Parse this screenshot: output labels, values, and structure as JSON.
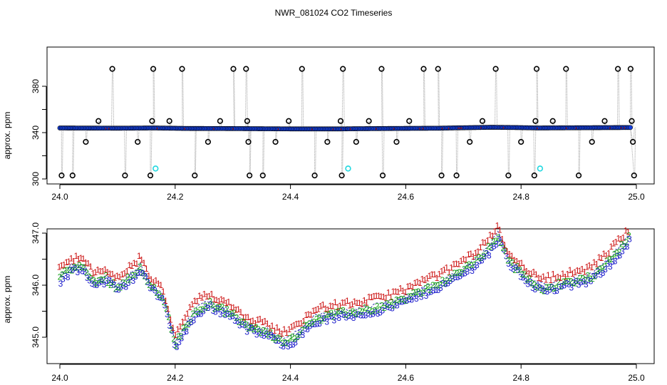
{
  "figure": {
    "title": "NWR_081024  CO2 Timeseries"
  },
  "colors": {
    "open": "#000000",
    "filled": "#1540e0",
    "green": "#1aa51a",
    "cyan": "#22d8e0",
    "red": "#cc1111",
    "connector": "#aaaaaa",
    "numA": "#cc1111",
    "numB": "#1aa51a",
    "numC": "#1a1acc"
  },
  "chart_data": [
    {
      "type": "scatter",
      "ylabel": "approx. ppm",
      "xlim": [
        24.0,
        25.0
      ],
      "ylim": [
        300,
        398
      ],
      "xticks": [
        "24.0",
        "24.2",
        "24.4",
        "24.6",
        "24.8",
        "25.0"
      ],
      "yticks": [
        "300",
        "340",
        "380"
      ],
      "grid": false,
      "baseline_segments": [
        {
          "x": [
            24.0,
            24.1,
            24.16,
            24.165
          ],
          "y": [
            344.0,
            343.8,
            344.0,
            344.0
          ]
        },
        {
          "x": [
            24.165,
            24.22,
            24.3,
            24.33
          ],
          "y": [
            344.0,
            343.6,
            343.5,
            343.4
          ]
        },
        {
          "x": [
            24.33,
            24.4,
            24.49,
            24.5
          ],
          "y": [
            343.4,
            343.2,
            343.2,
            343.3
          ]
        },
        {
          "x": [
            24.5,
            24.58,
            24.66,
            24.665
          ],
          "y": [
            343.3,
            343.6,
            343.8,
            343.9
          ]
        },
        {
          "x": [
            24.665,
            24.75,
            24.8,
            24.83
          ],
          "y": [
            343.9,
            344.6,
            344.3,
            344.0
          ]
        },
        {
          "x": [
            24.83,
            24.9,
            24.99
          ],
          "y": [
            344.0,
            344.2,
            344.4
          ]
        }
      ],
      "spikes": [
        {
          "x": 24.003,
          "y": 303
        },
        {
          "x": 24.022,
          "y": 303
        },
        {
          "x": 24.045,
          "y": 332
        },
        {
          "x": 24.067,
          "y": 350
        },
        {
          "x": 24.091,
          "y": 395
        },
        {
          "x": 24.113,
          "y": 303
        },
        {
          "x": 24.135,
          "y": 332
        },
        {
          "x": 24.157,
          "y": 303
        },
        {
          "x": 24.16,
          "y": 350
        },
        {
          "x": 24.162,
          "y": 395
        },
        {
          "x": 24.19,
          "y": 350
        },
        {
          "x": 24.212,
          "y": 395
        },
        {
          "x": 24.234,
          "y": 303
        },
        {
          "x": 24.257,
          "y": 332
        },
        {
          "x": 24.278,
          "y": 350
        },
        {
          "x": 24.301,
          "y": 395
        },
        {
          "x": 24.323,
          "y": 395
        },
        {
          "x": 24.325,
          "y": 350
        },
        {
          "x": 24.327,
          "y": 332
        },
        {
          "x": 24.329,
          "y": 303
        },
        {
          "x": 24.352,
          "y": 303
        },
        {
          "x": 24.374,
          "y": 332
        },
        {
          "x": 24.397,
          "y": 350
        },
        {
          "x": 24.42,
          "y": 395
        },
        {
          "x": 24.442,
          "y": 303
        },
        {
          "x": 24.464,
          "y": 332
        },
        {
          "x": 24.487,
          "y": 350
        },
        {
          "x": 24.489,
          "y": 303
        },
        {
          "x": 24.491,
          "y": 395
        },
        {
          "x": 24.514,
          "y": 332
        },
        {
          "x": 24.536,
          "y": 350
        },
        {
          "x": 24.558,
          "y": 395
        },
        {
          "x": 24.56,
          "y": 303
        },
        {
          "x": 24.584,
          "y": 332
        },
        {
          "x": 24.606,
          "y": 350
        },
        {
          "x": 24.631,
          "y": 395
        },
        {
          "x": 24.656,
          "y": 395
        },
        {
          "x": 24.662,
          "y": 303
        },
        {
          "x": 24.688,
          "y": 303
        },
        {
          "x": 24.711,
          "y": 332
        },
        {
          "x": 24.733,
          "y": 350
        },
        {
          "x": 24.756,
          "y": 395
        },
        {
          "x": 24.778,
          "y": 303
        },
        {
          "x": 24.8,
          "y": 332
        },
        {
          "x": 24.823,
          "y": 303
        },
        {
          "x": 24.825,
          "y": 350
        },
        {
          "x": 24.827,
          "y": 395
        },
        {
          "x": 24.855,
          "y": 350
        },
        {
          "x": 24.878,
          "y": 395
        },
        {
          "x": 24.9,
          "y": 303
        },
        {
          "x": 24.923,
          "y": 332
        },
        {
          "x": 24.945,
          "y": 350
        },
        {
          "x": 24.968,
          "y": 395
        },
        {
          "x": 24.99,
          "y": 395
        },
        {
          "x": 24.992,
          "y": 350
        },
        {
          "x": 24.994,
          "y": 332
        },
        {
          "x": 24.996,
          "y": 303
        }
      ],
      "cyan_points": [
        {
          "x": 24.166,
          "y": 309
        },
        {
          "x": 24.5,
          "y": 309
        },
        {
          "x": 24.833,
          "y": 309
        }
      ]
    },
    {
      "type": "line",
      "ylabel": "approx. ppm",
      "xlim": [
        24.0,
        25.0
      ],
      "ylim": [
        344.62,
        347.2
      ],
      "xticks": [
        "24.0",
        "24.2",
        "24.4",
        "24.6",
        "24.8",
        "25.0"
      ],
      "yticks": [
        "345.0",
        "346.0",
        "347.0"
      ],
      "grid": false,
      "trend": {
        "x": [
          24.0,
          24.02,
          24.04,
          24.06,
          24.08,
          24.1,
          24.12,
          24.14,
          24.16,
          24.18,
          24.2,
          24.22,
          24.24,
          24.26,
          24.28,
          24.3,
          24.32,
          24.34,
          24.36,
          24.38,
          24.4,
          24.44,
          24.48,
          24.52,
          24.56,
          24.6,
          24.64,
          24.68,
          24.72,
          24.74,
          24.76,
          24.78,
          24.8,
          24.82,
          24.84,
          24.88,
          24.92,
          24.96,
          24.99
        ],
        "y": [
          346.2,
          346.4,
          346.4,
          346.1,
          346.2,
          346.0,
          346.2,
          346.4,
          346.0,
          345.8,
          344.9,
          345.3,
          345.6,
          345.7,
          345.6,
          345.5,
          345.3,
          345.2,
          345.15,
          345.0,
          345.0,
          345.4,
          345.5,
          345.55,
          345.65,
          345.8,
          346.0,
          346.2,
          346.5,
          346.7,
          347.0,
          346.5,
          346.3,
          346.1,
          346.0,
          346.1,
          346.2,
          346.6,
          347.0
        ]
      }
    }
  ]
}
